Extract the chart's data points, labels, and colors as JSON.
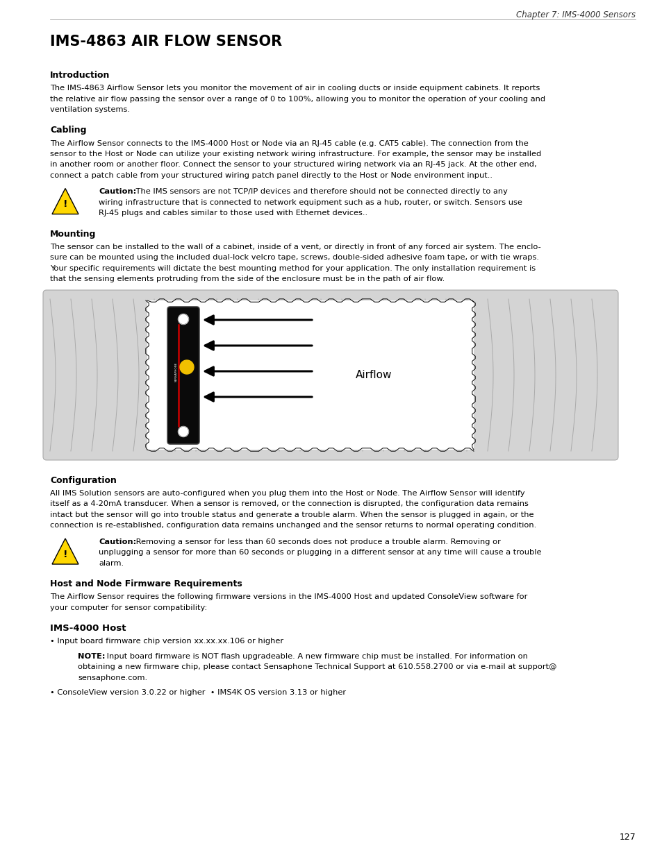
{
  "chapter_header": "Chapter 7: IMS-4000 Sensors",
  "main_title": "IMS-4863 AIR FLOW SENSOR",
  "section1_title": "Introduction",
  "section1_body1": "The IMS-4863 Airflow Sensor lets you monitor the movement of air in cooling ducts or inside equipment cabinets. It reports",
  "section1_body2": "the relative air flow passing the sensor over a range of 0 to 100%, allowing you to monitor the operation of your cooling and",
  "section1_body3": "ventilation systems.",
  "section2_title": "Cabling",
  "section2_body1": "The Airflow Sensor connects to the IMS-4000 Host or Node via an RJ-45 cable (e.g. CAT5 cable). The connection from the",
  "section2_body2": "sensor to the Host or Node can utilize your existing network wiring infrastructure. For example, the sensor may be installed",
  "section2_body3": "in another room or another floor. Connect the sensor to your structured wiring network via an RJ-45 jack. At the other end,",
  "section2_body4": "connect a patch cable from your structured wiring patch panel directly to the Host or Node environment input..",
  "caution1_text1": "Caution: The IMS sensors are not TCP/IP devices and therefore should not be connected directly to any",
  "caution1_text2": "wiring infrastructure that is connected to network equipment such as a hub, router, or switch. Sensors use",
  "caution1_text3": "RJ-45 plugs and cables similar to those used with Ethernet devices..",
  "section3_title": "Mounting",
  "section3_body1": "The sensor can be installed to the wall of a cabinet, inside of a vent, or directly in front of any forced air system. The enclo-",
  "section3_body2": "sure can be mounted using the included dual-lock velcro tape, screws, double-sided adhesive foam tape, or with tie wraps.",
  "section3_body3": "Your specific requirements will dictate the best mounting method for your application. The only installation requirement is",
  "section3_body4": "that the sensing elements protruding from the side of the enclosure must be in the path of air flow.",
  "airflow_label": "Airflow",
  "section4_title": "Configuration",
  "section4_body1": "All IMS Solution sensors are auto-configured when you plug them into the Host or Node. The Airflow Sensor will identify",
  "section4_body2": "itself as a 4-20mA transducer. When a sensor is removed, or the connection is disrupted, the configuration data remains",
  "section4_body3": "intact but the sensor will go into trouble status and generate a trouble alarm. When the sensor is plugged in again, or the",
  "section4_body4": "connection is re-established, configuration data remains unchanged and the sensor returns to normal operating condition.",
  "caution2_text1": "Caution: Removing a sensor for less than 60 seconds does not produce a trouble alarm. Removing or",
  "caution2_text2": "unplugging a sensor for more than 60 seconds or plugging in a different sensor at any time will cause a trouble",
  "caution2_text3": "alarm.",
  "section5_title": "Host and Node Firmware Requirements",
  "section5_body1": "The Airflow Sensor requires the following firmware versions in the IMS-4000 Host and updated ConsoleView software for",
  "section5_body2": "your computer for sensor compatibility:",
  "section6_title": "IMS-4000 Host",
  "bullet1": "• Input board firmware chip version xx.xx.xx.106 or higher",
  "note_line1": "NOTE: Input board firmware is NOT flash upgradeable. A new firmware chip must be installed. For information on",
  "note_line2": "obtaining a new firmware chip, please contact Sensaphone Technical Support at 610.558.2700 or via e-mail at support@",
  "note_line3": "sensaphone.com.",
  "bullet2": "• ConsoleView version 3.0.22 or higher  • IMS4K OS version 3.13 or higher",
  "page_number": "127",
  "bg_color": "#ffffff",
  "text_color": "#000000"
}
